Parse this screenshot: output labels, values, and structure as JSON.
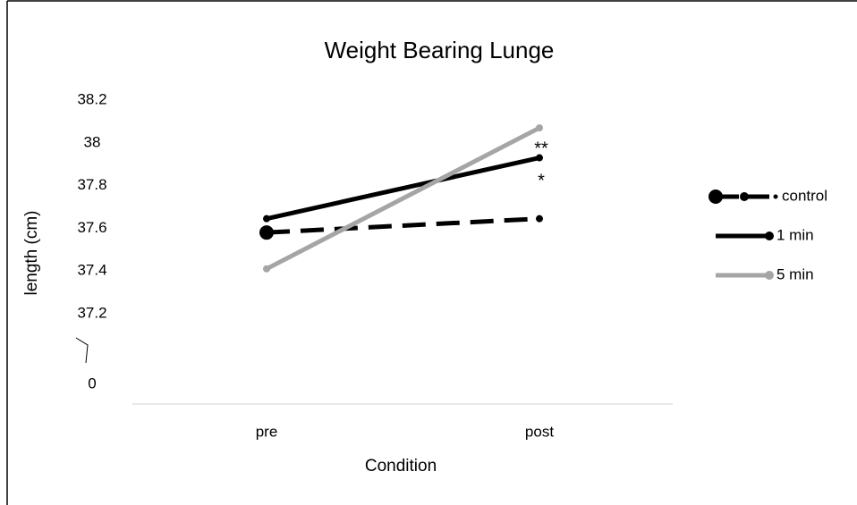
{
  "chart_data": {
    "type": "line",
    "title": "Weight Bearing Lunge",
    "x_label": "Condition",
    "y_label": "length (cm)",
    "categories": [
      "pre",
      "post"
    ],
    "series": [
      {
        "name": "control",
        "color": "#000000",
        "dashed": true,
        "values": [
          37.58,
          37.645
        ]
      },
      {
        "name": "1 min",
        "color": "#000000",
        "dashed": false,
        "values": [
          37.645,
          37.93
        ]
      },
      {
        "name": "5 min",
        "color": "#a5a5a5",
        "dashed": false,
        "values": [
          37.41,
          38.07
        ]
      }
    ],
    "ylim": [
      37.2,
      38.2
    ],
    "yticks": [
      0,
      37.2,
      37.4,
      37.6,
      37.8,
      38,
      38.2
    ],
    "axis_break": true,
    "annotations": [
      "**",
      "*"
    ],
    "legend": "right"
  }
}
